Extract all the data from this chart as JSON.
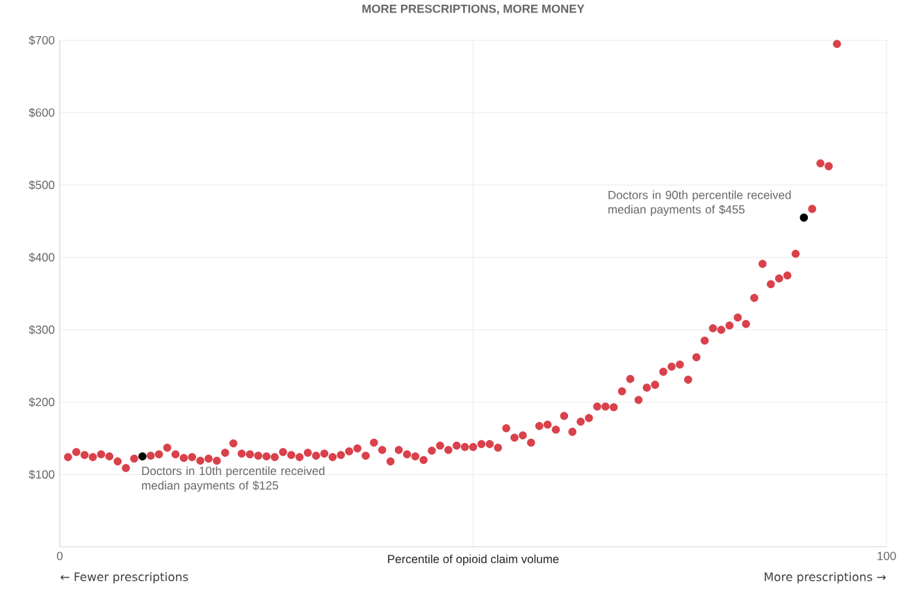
{
  "chart_data": {
    "type": "scatter",
    "title": "MORE PRESCRIPTIONS, MORE MONEY",
    "xlabel": "Percentile of opioid claim volume",
    "x": [
      1,
      2,
      3,
      4,
      5,
      6,
      7,
      8,
      9,
      10,
      11,
      12,
      13,
      14,
      15,
      16,
      17,
      18,
      19,
      20,
      21,
      22,
      23,
      24,
      25,
      26,
      27,
      28,
      29,
      30,
      31,
      32,
      33,
      34,
      35,
      36,
      37,
      38,
      39,
      40,
      41,
      42,
      43,
      44,
      45,
      46,
      47,
      48,
      49,
      50,
      51,
      52,
      53,
      54,
      55,
      56,
      57,
      58,
      59,
      60,
      61,
      62,
      63,
      64,
      65,
      66,
      67,
      68,
      69,
      70,
      71,
      72,
      73,
      74,
      75,
      76,
      77,
      78,
      79,
      80,
      81,
      82,
      83,
      84,
      85,
      86,
      87,
      88,
      89,
      90,
      91,
      92,
      93,
      94
    ],
    "values": [
      124,
      131,
      127,
      124,
      128,
      125,
      118,
      109,
      122,
      125,
      126,
      128,
      137,
      128,
      123,
      124,
      119,
      122,
      119,
      130,
      143,
      129,
      128,
      126,
      125,
      124,
      131,
      127,
      124,
      130,
      126,
      129,
      124,
      127,
      132,
      136,
      126,
      144,
      134,
      118,
      134,
      128,
      125,
      120,
      133,
      140,
      134,
      140,
      138,
      138,
      142,
      142,
      137,
      164,
      151,
      154,
      144,
      167,
      169,
      162,
      181,
      159,
      173,
      178,
      194,
      194,
      193,
      215,
      232,
      203,
      220,
      224,
      242,
      249,
      252,
      231,
      262,
      285,
      302,
      300,
      306,
      317,
      308,
      344,
      391,
      363,
      371,
      375,
      405,
      455,
      467,
      530,
      526,
      695
    ],
    "colors": [
      "#d9414b",
      "#d9414b",
      "#d9414b",
      "#d9414b",
      "#d9414b",
      "#d9414b",
      "#d9414b",
      "#d9414b",
      "#d9414b",
      "#000000",
      "#d9414b",
      "#d9414b",
      "#d9414b",
      "#d9414b",
      "#d9414b",
      "#d9414b",
      "#d9414b",
      "#d9414b",
      "#d9414b",
      "#d9414b",
      "#d9414b",
      "#d9414b",
      "#d9414b",
      "#d9414b",
      "#d9414b",
      "#d9414b",
      "#d9414b",
      "#d9414b",
      "#d9414b",
      "#d9414b",
      "#d9414b",
      "#d9414b",
      "#d9414b",
      "#d9414b",
      "#d9414b",
      "#d9414b",
      "#d9414b",
      "#d9414b",
      "#d9414b",
      "#d9414b",
      "#d9414b",
      "#d9414b",
      "#d9414b",
      "#d9414b",
      "#d9414b",
      "#d9414b",
      "#d9414b",
      "#d9414b",
      "#d9414b",
      "#d9414b",
      "#d9414b",
      "#d9414b",
      "#d9414b",
      "#d9414b",
      "#d9414b",
      "#d9414b",
      "#d9414b",
      "#d9414b",
      "#d9414b",
      "#d9414b",
      "#d9414b",
      "#d9414b",
      "#d9414b",
      "#d9414b",
      "#d9414b",
      "#d9414b",
      "#d9414b",
      "#d9414b",
      "#d9414b",
      "#d9414b",
      "#d9414b",
      "#d9414b",
      "#d9414b",
      "#d9414b",
      "#d9414b",
      "#d9414b",
      "#d9414b",
      "#d9414b",
      "#d9414b",
      "#d9414b",
      "#d9414b",
      "#d9414b",
      "#d9414b",
      "#d9414b",
      "#d9414b",
      "#d9414b",
      "#d9414b",
      "#d9414b",
      "#d9414b",
      "#000000",
      "#d9414b",
      "#d9414b",
      "#d9414b",
      "#d9414b"
    ],
    "xlim": [
      0,
      100
    ],
    "xticks": [
      0,
      {
        "value": 50,
        "label": null
      },
      100
    ],
    "ylim": [
      0,
      700
    ],
    "yticks": [
      {
        "value": 100,
        "label": "$100"
      },
      {
        "value": 200,
        "label": "$200"
      },
      {
        "value": 300,
        "label": "$300"
      },
      {
        "value": 400,
        "label": "$400"
      },
      {
        "value": 500,
        "label": "$500"
      },
      {
        "value": 600,
        "label": "$600"
      },
      {
        "value": 700,
        "label": "$700"
      }
    ],
    "grid": true,
    "annotations": [
      {
        "text": "Doctors in 10th percentile received median payments of $125",
        "x": 10,
        "y": 125
      },
      {
        "text": "Doctors in 90th percentile received median payments of $455",
        "x": 90,
        "y": 455
      },
      "← Fewer prescriptions",
      "More prescriptions →"
    ]
  }
}
